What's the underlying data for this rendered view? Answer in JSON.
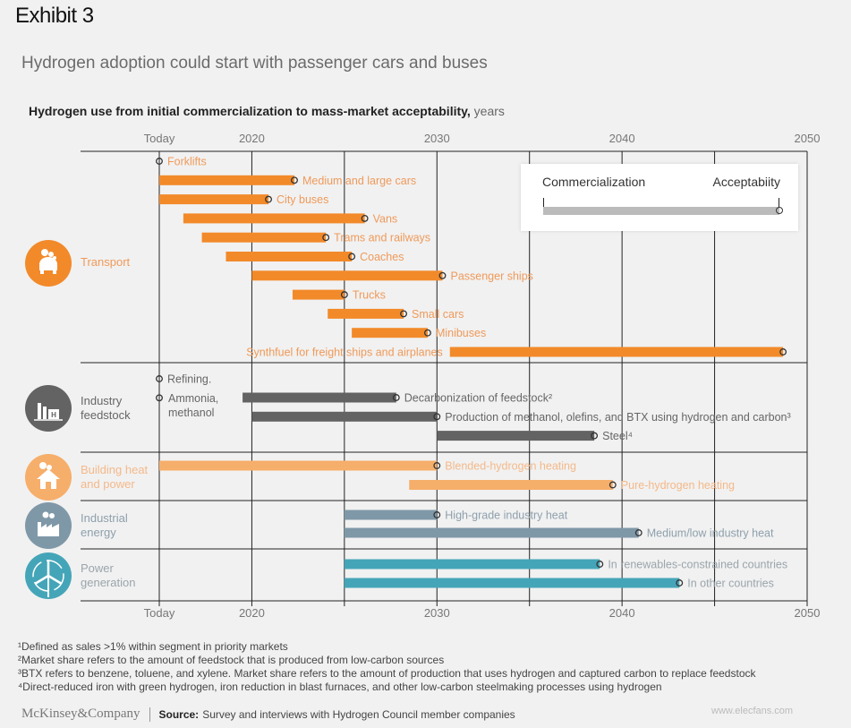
{
  "header": {
    "exhibit": "Exhibit 3",
    "subtitle": "Hydrogen adoption could start with passenger cars and buses",
    "chart_title": "Hydrogen use from initial commercialization to mass-market acceptability,",
    "chart_title_unit": " years"
  },
  "legend": {
    "start_label": "Commercialization",
    "end_label": "Acceptabiity",
    "bar_color": "#bbbbbb"
  },
  "chart_data": {
    "type": "bar",
    "subtype": "horizontal-range-gantt",
    "title": "Hydrogen use from initial commercialization to mass-market acceptability, years",
    "xlabel": "",
    "xlim": [
      2015,
      2050
    ],
    "xticks": [
      {
        "value": 2015,
        "label": "Today"
      },
      {
        "value": 2020,
        "label": "2020"
      },
      {
        "value": 2030,
        "label": "2030"
      },
      {
        "value": 2040,
        "label": "2040"
      },
      {
        "value": 2050,
        "label": "2050"
      }
    ],
    "gridlines": [
      2015,
      2020,
      2025,
      2030,
      2035,
      2040,
      2045,
      2050
    ],
    "grid": true,
    "legend_position": "top-right",
    "segments": [
      {
        "name": "Transport",
        "icon": "car-icon",
        "color": "#F28A2A",
        "label_color": "#EF9A5A",
        "items": [
          {
            "label": "Forklifts",
            "start": 2015,
            "end": 2015
          },
          {
            "label": "Medium and large cars",
            "start": 2015,
            "end": 2022.3
          },
          {
            "label": "City buses",
            "start": 2015,
            "end": 2020.9
          },
          {
            "label": "Vans",
            "start": 2016.3,
            "end": 2026.1
          },
          {
            "label": "Trams and railways",
            "start": 2017.3,
            "end": 2024
          },
          {
            "label": "Coaches",
            "start": 2018.6,
            "end": 2025.4
          },
          {
            "label": "Passenger ships",
            "start": 2020,
            "end": 2030.3
          },
          {
            "label": "Trucks",
            "start": 2022.2,
            "end": 2025
          },
          {
            "label": "Small cars",
            "start": 2024.1,
            "end": 2028.2
          },
          {
            "label": "Minibuses",
            "start": 2025.4,
            "end": 2029.5
          },
          {
            "label": "Synthfuel for freight ships and airplanes",
            "start": 2030.7,
            "end": 2048.7,
            "label_side": "left"
          }
        ]
      },
      {
        "name": "Industry feedstock",
        "icon": "factory-h-icon",
        "color": "#636363",
        "label_color": "#666666",
        "items": [
          {
            "label": "Refining.",
            "start": 2015,
            "end": 2015
          },
          {
            "label": "Ammonia, methanol",
            "start": 2015,
            "end": 2015
          },
          {
            "label": "Decarbonization of feedstock²",
            "start": 2019.5,
            "end": 2027.8
          },
          {
            "label": "Production of methanol, olefins, and BTX using hydrogen and carbon³",
            "start": 2020,
            "end": 2030
          },
          {
            "label": "Steel⁴",
            "start": 2030,
            "end": 2038.5
          }
        ]
      },
      {
        "name": "Building heat and power",
        "icon": "house-icon",
        "color": "#F6AE6B",
        "label_color": "#F4B98A",
        "items": [
          {
            "label": "Blended-hydrogen heating",
            "start": 2015,
            "end": 2030
          },
          {
            "label": "Pure-hydrogen heating",
            "start": 2028.5,
            "end": 2039.5
          }
        ]
      },
      {
        "name": "Industrial energy",
        "icon": "industry-icon",
        "color": "#7F98A8",
        "label_color": "#8EA0AC",
        "items": [
          {
            "label": "High-grade industry heat",
            "start": 2025,
            "end": 2030
          },
          {
            "label": "Medium/low industry heat",
            "start": 2025,
            "end": 2040.9
          }
        ]
      },
      {
        "name": "Power generation",
        "icon": "wind-turbine-icon",
        "color": "#45A5B8",
        "label_color": "#9AA5AB",
        "items": [
          {
            "label": "In renewables-constrained countries",
            "start": 2025,
            "end": 2038.8
          },
          {
            "label": "In other countries",
            "start": 2025,
            "end": 2043.1
          }
        ]
      }
    ]
  },
  "footnotes": [
    "¹Defined as sales >1% within segment in priority markets",
    "²Market share refers to the amount of feedstock that is produced from low-carbon sources",
    "³BTX refers to benzene, toluene, and xylene. Market share refers to the amount of production that uses hydrogen and captured carbon to replace feedstock",
    "⁴Direct-reduced iron with green hydrogen, iron reduction in blast furnaces, and other low-carbon steelmaking processes using hydrogen"
  ],
  "footer": {
    "logo": "McKinsey&Company",
    "source_label": "Source:",
    "source_text": "Survey and interviews with Hydrogen Council member companies"
  },
  "watermark": "www.elecfans.com"
}
